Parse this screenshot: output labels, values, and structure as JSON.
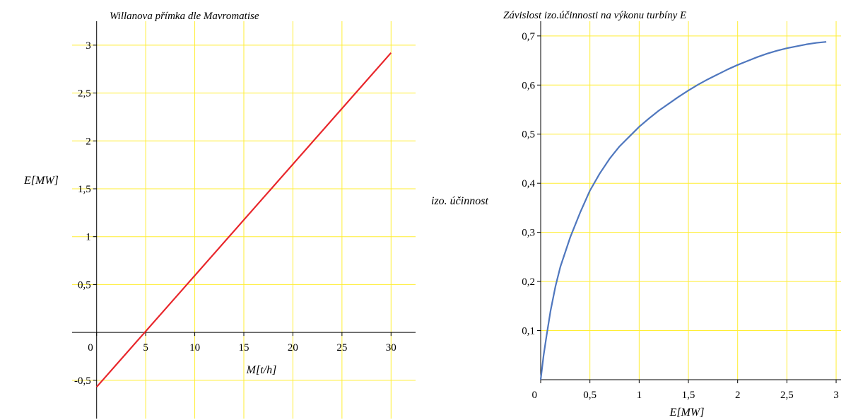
{
  "chart_data": [
    {
      "type": "line",
      "title": "Willanova přímka dle Mavromatise",
      "xlabel": "M[t/h]",
      "ylabel": "E[MW]",
      "xlim": [
        -2.5,
        32.5
      ],
      "ylim": [
        -0.9,
        3.25
      ],
      "grid": true,
      "grid_color": "#ffee33",
      "x_ticks": [
        0,
        5,
        10,
        15,
        20,
        25,
        30
      ],
      "x_tick_labels": [
        "0",
        "5",
        "10",
        "15",
        "20",
        "25",
        "30"
      ],
      "y_ticks": [
        -0.5,
        0.5,
        1,
        1.5,
        2,
        2.5,
        3
      ],
      "y_tick_labels": [
        "-0,5",
        "0,5",
        "1",
        "1,5",
        "2",
        "2,5",
        "3"
      ],
      "x_grid": [
        5,
        10,
        15,
        20,
        25,
        30
      ],
      "y_grid": [
        -0.5,
        0.5,
        1,
        1.5,
        2,
        2.5,
        3
      ],
      "series": [
        {
          "color": "#e8262b",
          "x": [
            0,
            30
          ],
          "y": [
            -0.57,
            2.92
          ]
        }
      ]
    },
    {
      "type": "line",
      "title": "Závislost izo.účinnosti na výkonu turbíny E",
      "xlabel": "E[MW]",
      "ylabel": "izo. účinnost",
      "xlim": [
        0,
        3.05
      ],
      "ylim": [
        0,
        0.73
      ],
      "grid": true,
      "grid_color": "#ffee33",
      "x_ticks": [
        0,
        0.5,
        1,
        1.5,
        2,
        2.5,
        3
      ],
      "x_tick_labels": [
        "0",
        "0,5",
        "1",
        "1,5",
        "2",
        "2,5",
        "3"
      ],
      "y_ticks": [
        0,
        0.1,
        0.2,
        0.3,
        0.4,
        0.5,
        0.6,
        0.7
      ],
      "y_tick_labels": [
        "0",
        "0,1",
        "0,2",
        "0,3",
        "0,4",
        "0,5",
        "0,6",
        "0,7"
      ],
      "x_grid": [
        0.5,
        1,
        1.5,
        2,
        2.5,
        3
      ],
      "y_grid": [
        0.1,
        0.2,
        0.3,
        0.4,
        0.5,
        0.6,
        0.7
      ],
      "series": [
        {
          "color": "#4f77be",
          "x": [
            0,
            0.03,
            0.06,
            0.1,
            0.15,
            0.2,
            0.3,
            0.4,
            0.5,
            0.6,
            0.7,
            0.8,
            0.9,
            1.0,
            1.1,
            1.2,
            1.3,
            1.4,
            1.5,
            1.6,
            1.7,
            1.8,
            1.9,
            2.0,
            2.1,
            2.2,
            2.3,
            2.4,
            2.5,
            2.6,
            2.7,
            2.8,
            2.9
          ],
          "y": [
            0,
            0.05,
            0.09,
            0.14,
            0.19,
            0.23,
            0.29,
            0.34,
            0.385,
            0.42,
            0.45,
            0.475,
            0.495,
            0.515,
            0.532,
            0.548,
            0.562,
            0.576,
            0.589,
            0.601,
            0.612,
            0.622,
            0.632,
            0.641,
            0.649,
            0.657,
            0.664,
            0.67,
            0.675,
            0.679,
            0.683,
            0.686,
            0.688
          ]
        }
      ]
    }
  ]
}
